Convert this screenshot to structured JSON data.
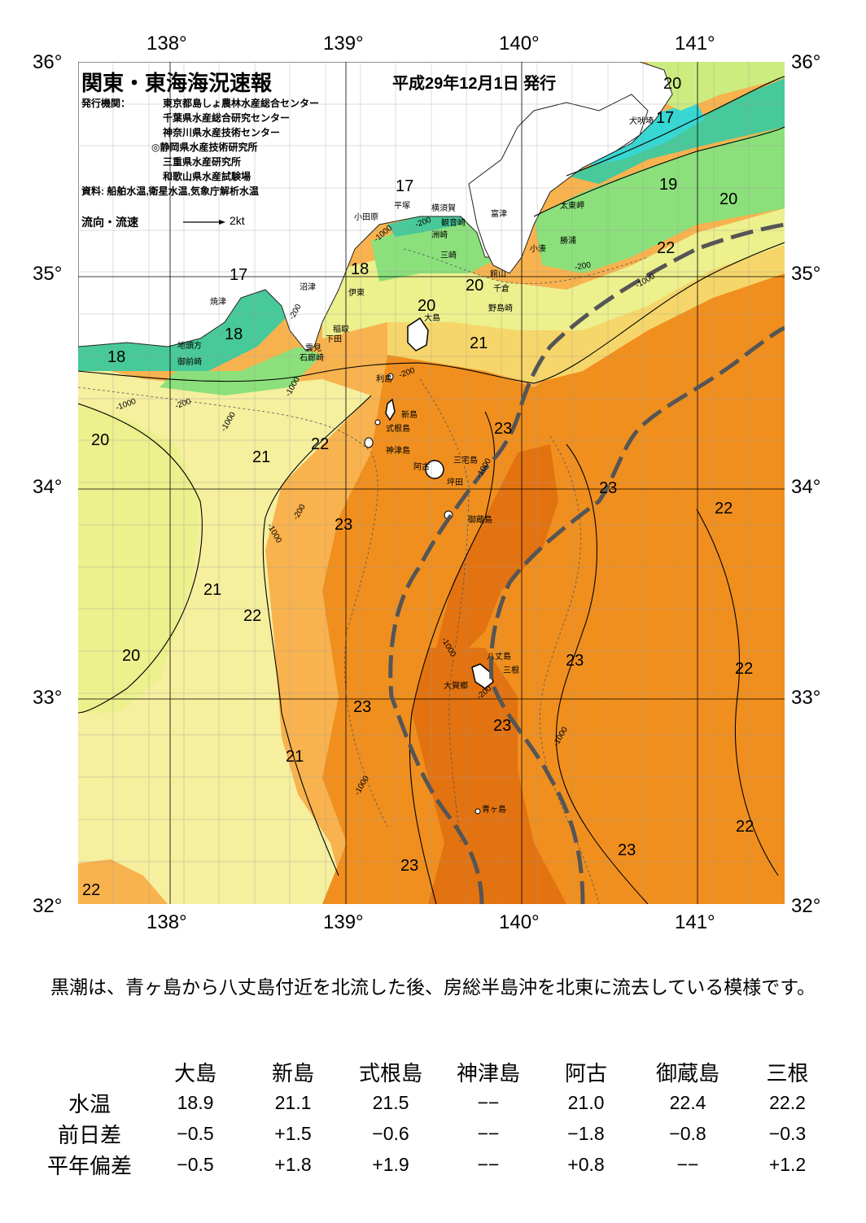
{
  "header": {
    "title": "関東・東海海況速報",
    "date": "平成29年12月1日 発行",
    "issuer_label": "発行機関：",
    "issuers": [
      "東京都島しょ農林水産総合センター",
      "千葉県水産総合研究センター",
      "神奈川県水産技術センター",
      "◎静岡県水産技術研究所",
      "三重県水産研究所",
      "和歌山県水産試験場"
    ],
    "source": "資料: 船舶水温,衛星水温,気象庁解析水温",
    "flow_label": "流向・流速",
    "flow_scale": "2kt"
  },
  "axes": {
    "lon_top": [
      "138°",
      "139°",
      "140°",
      "141°"
    ],
    "lon_bottom": [
      "138°",
      "139°",
      "140°",
      "141°"
    ],
    "lat_left": [
      "36°",
      "35°",
      "34°",
      "33°",
      "32°"
    ],
    "lat_right": [
      "36°",
      "35°",
      "34°",
      "33°",
      "32°"
    ]
  },
  "isotherm_labels": [
    "20",
    "17",
    "19",
    "20",
    "22",
    "17",
    "17",
    "18",
    "18",
    "20",
    "20",
    "18",
    "21",
    "20",
    "21",
    "22",
    "23",
    "23",
    "22",
    "23",
    "21",
    "22",
    "20",
    "23",
    "21",
    "23",
    "23",
    "23",
    "22",
    "22",
    "23",
    "22"
  ],
  "bathymetry_labels": [
    "-200",
    "-1000",
    "-200",
    "-1000",
    "-200",
    "-1000",
    "-200",
    "-1000",
    "-200",
    "-1000",
    "-200",
    "-1000",
    "-1000",
    "-1000",
    "-200",
    "-1000",
    "-1000"
  ],
  "places": [
    "犬吠埼",
    "太東岬",
    "勝浦",
    "小湊",
    "富津",
    "館山",
    "千倉",
    "野島崎",
    "洲崎",
    "三崎",
    "観音崎",
    "横須賀",
    "平塚",
    "小田原",
    "沼津",
    "伊東",
    "焼津",
    "稲取",
    "下田",
    "雲見",
    "石廊崎",
    "地頭方",
    "御前崎",
    "大島",
    "利島",
    "新島",
    "式根島",
    "神津島",
    "三宅島",
    "阿古",
    "坪田",
    "御蔵島",
    "八丈島",
    "三根",
    "大賀郷",
    "青ヶ島"
  ],
  "description": "黒潮は、青ヶ島から八丈島付近を北流した後、房総半島沖を北東に流去している模様です。",
  "stats": {
    "columns": [
      "大島",
      "新島",
      "式根島",
      "神津島",
      "阿古",
      "御蔵島",
      "三根"
    ],
    "rows": [
      {
        "label": "水温",
        "values": [
          "18.9",
          "21.1",
          "21.5",
          "−−",
          "21.0",
          "22.4",
          "22.2"
        ]
      },
      {
        "label": "前日差",
        "values": [
          "−0.5",
          "+1.5",
          "−0.6",
          "−−",
          "−1.8",
          "−0.8",
          "−0.3"
        ]
      },
      {
        "label": "平年偏差",
        "values": [
          "−0.5",
          "+1.8",
          "+1.9",
          "−−",
          "+0.8",
          "−−",
          "+1.2"
        ]
      }
    ]
  },
  "colors": {
    "land": "#ffffff",
    "t17": "#37d7d3",
    "t18": "#48c99a",
    "t19": "#8be07b",
    "t20": "#ccec80",
    "t21": "#f5ef9e",
    "t22": "#f8b24e",
    "t23": "#f08f1e",
    "t24": "#e37210",
    "kuroshio": "#555555"
  }
}
